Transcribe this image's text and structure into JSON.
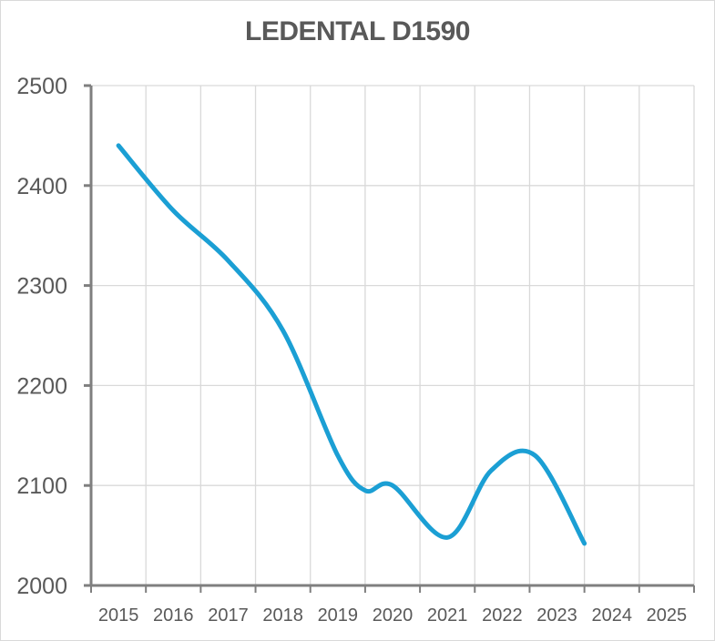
{
  "chart_data": {
    "type": "line",
    "title": "LEDENTAL D1590",
    "xlabel": "",
    "ylabel": "",
    "x_ticks": [
      "2015",
      "2016",
      "2017",
      "2018",
      "2019",
      "2020",
      "2021",
      "2022",
      "2023",
      "2024",
      "2025"
    ],
    "y_ticks": [
      "2000",
      "2100",
      "2200",
      "2300",
      "2400",
      "2500"
    ],
    "ylim": [
      2000,
      2500
    ],
    "grid": true,
    "legend": "none",
    "smooth": true,
    "series": [
      {
        "color": "#1b9fd4",
        "points": [
          {
            "x": 2015.5,
            "y": 2440
          },
          {
            "x": 2016.5,
            "y": 2375
          },
          {
            "x": 2017.5,
            "y": 2325
          },
          {
            "x": 2018.5,
            "y": 2255
          },
          {
            "x": 2019.5,
            "y": 2130
          },
          {
            "x": 2020.0,
            "y": 2095
          },
          {
            "x": 2020.5,
            "y": 2100
          },
          {
            "x": 2021.5,
            "y": 2048
          },
          {
            "x": 2022.3,
            "y": 2115
          },
          {
            "x": 2023.1,
            "y": 2130
          },
          {
            "x": 2024.0,
            "y": 2042
          }
        ]
      }
    ]
  }
}
